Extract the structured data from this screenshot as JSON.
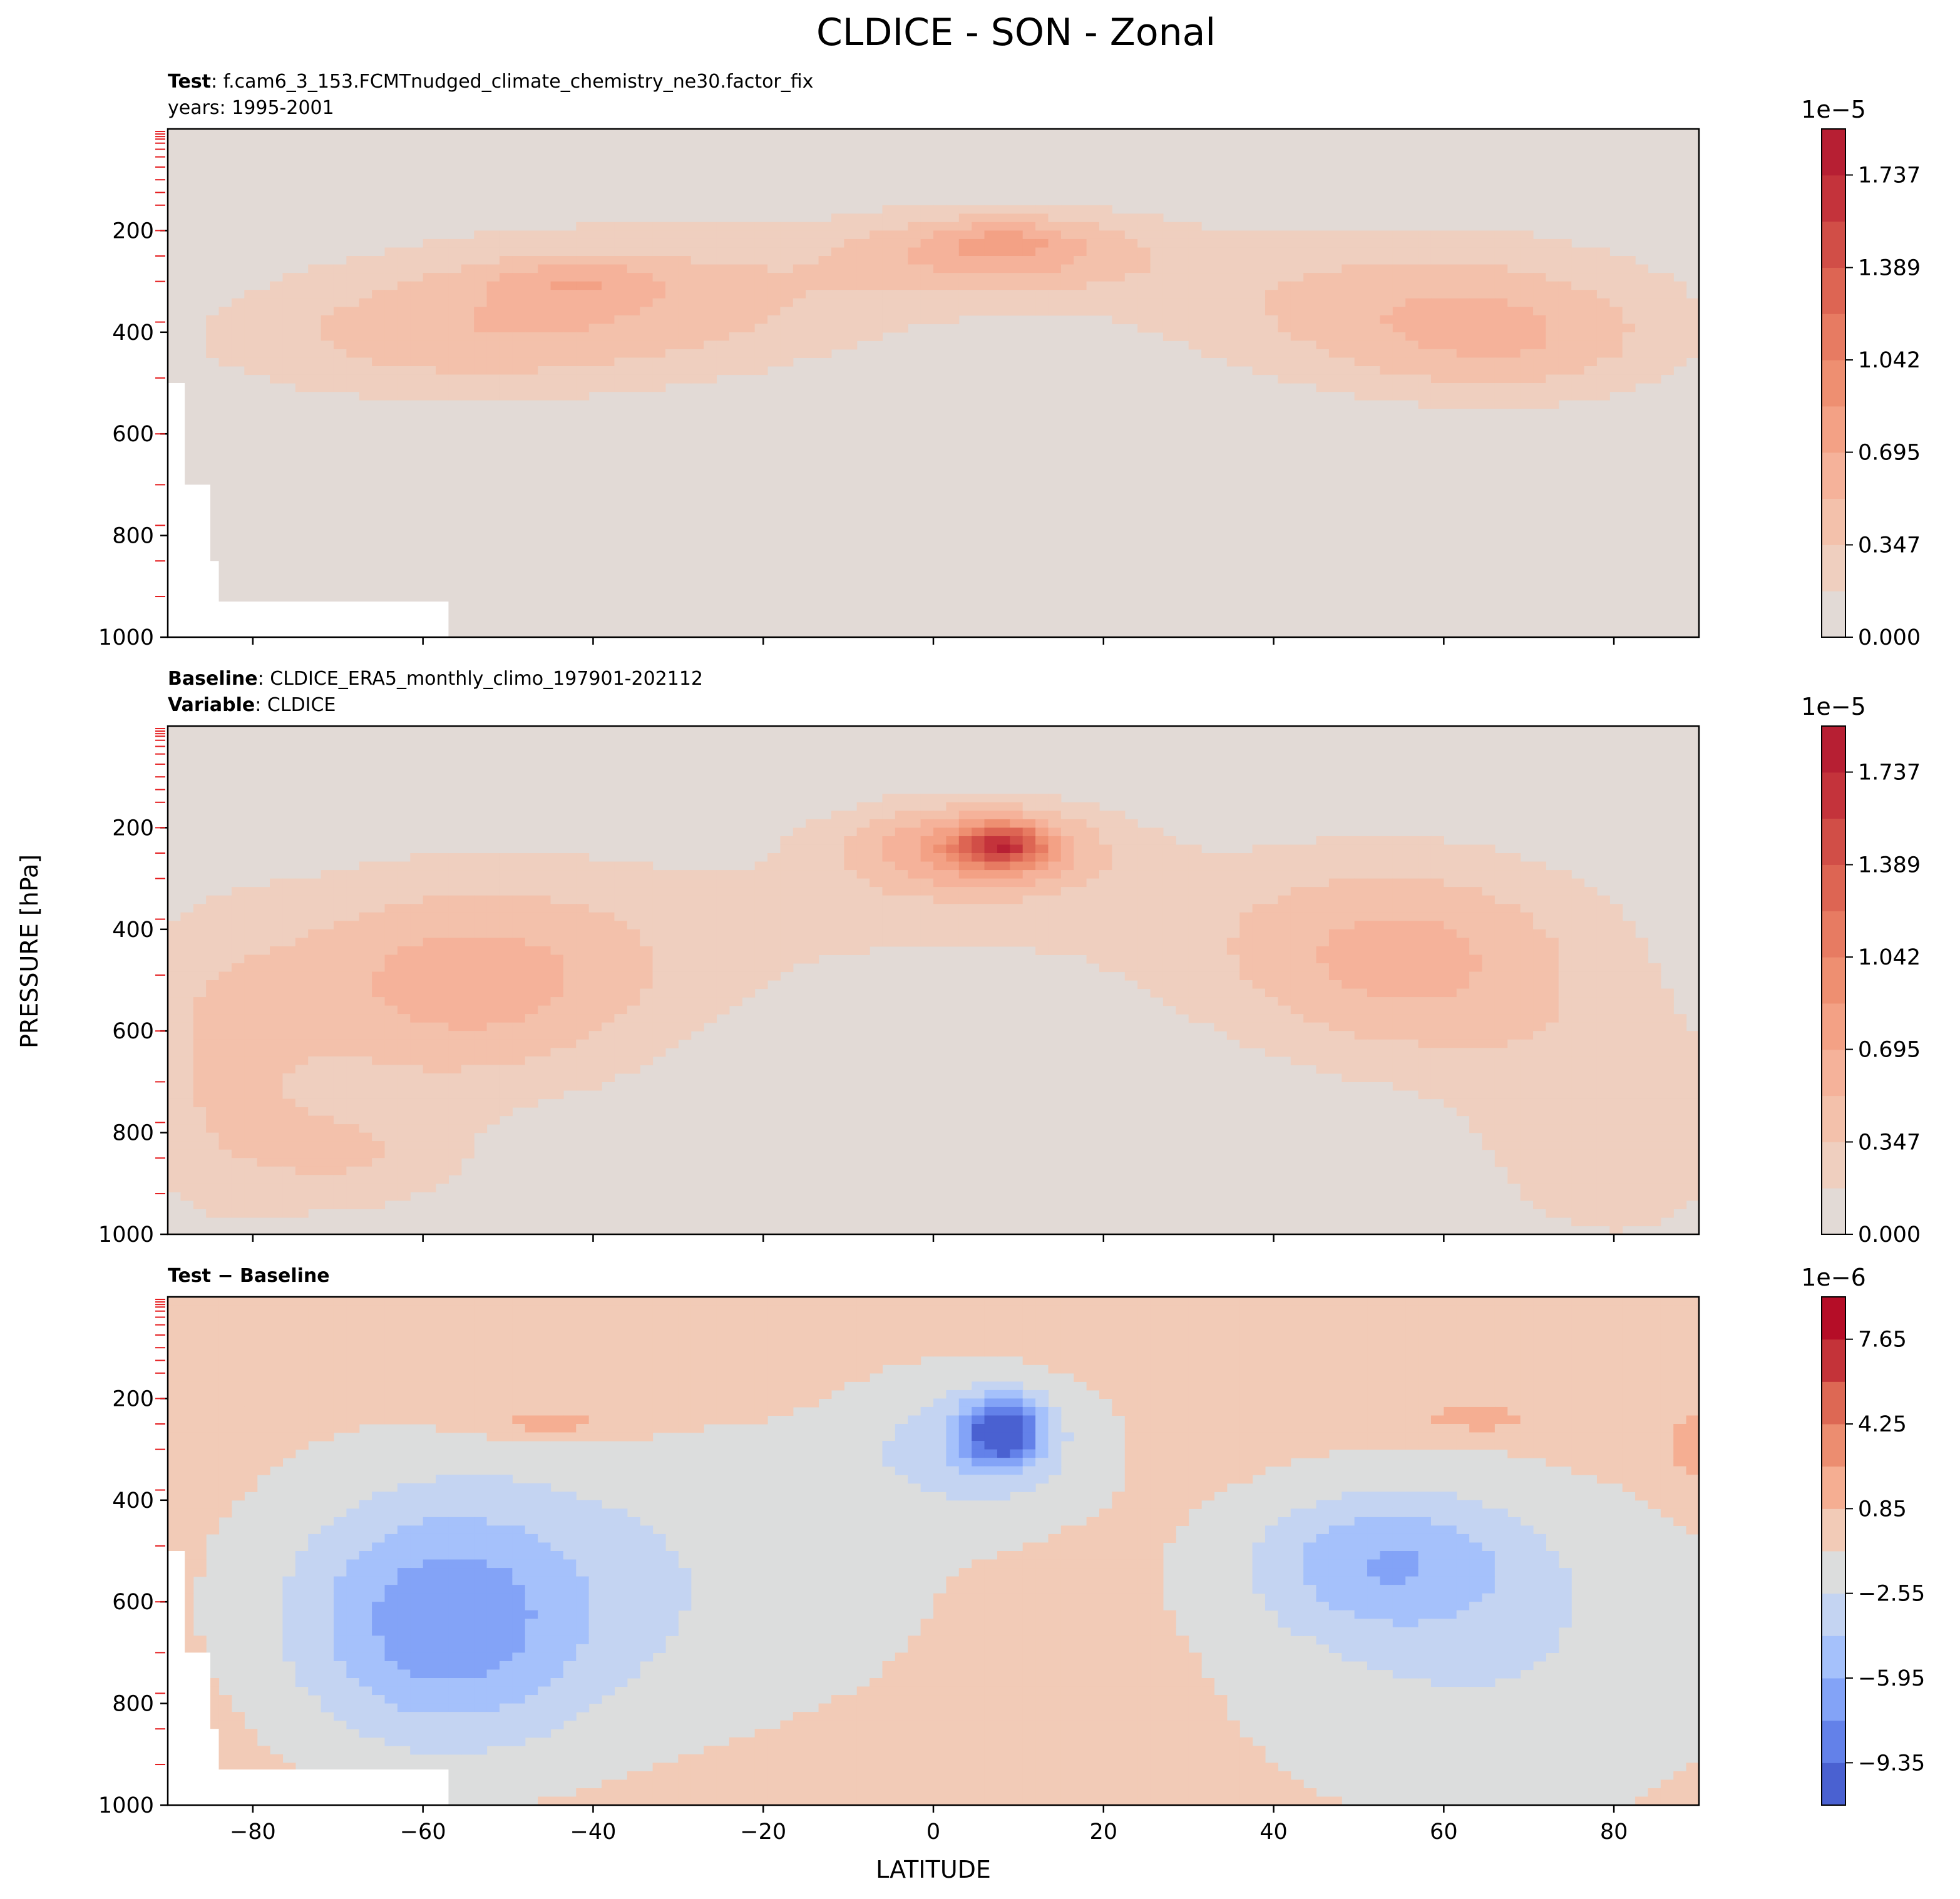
{
  "figure": {
    "title": "CLDICE - SON - Zonal",
    "ylabel": "PRESSURE [hPa]",
    "xlabel": "LATITUDE"
  },
  "chart_data": [
    {
      "type": "contourf",
      "panel": "test",
      "meta_lines": [
        {
          "label": "Test",
          "sep": ": ",
          "text": "f.cam6_3_153.FCMTnudged_climate_chemistry_ne30.factor_fix"
        },
        {
          "label": "",
          "sep": "",
          "text": "years: 1995-2001"
        }
      ],
      "xlim": [
        -90,
        90
      ],
      "ylim": [
        1000,
        0
      ],
      "x_ticks": [
        -80,
        -60,
        -40,
        -20,
        0,
        20,
        40,
        60,
        80
      ],
      "y_ticks": [
        200,
        400,
        600,
        800,
        1000
      ],
      "show_x_tick_labels": false,
      "colormap": "sequential-reds",
      "colorbar": {
        "offset": "1e−5",
        "levels": [
          0.0,
          0.174,
          0.347,
          0.521,
          0.695,
          0.868,
          1.042,
          1.215,
          1.389,
          1.563,
          1.737,
          1.91
        ],
        "tick_values": [
          0.0,
          0.347,
          0.695,
          1.042,
          1.389,
          1.737
        ],
        "tick_labels": [
          "0.000",
          "0.347",
          "0.695",
          "1.042",
          "1.389",
          "1.737"
        ]
      },
      "features": [
        {
          "lat": -42,
          "plev": 300,
          "value": 0.7
        },
        {
          "lat": 8,
          "plev": 230,
          "value": 0.85
        },
        {
          "lat": 50,
          "plev": 320,
          "value": 0.5
        }
      ]
    },
    {
      "type": "contourf",
      "panel": "baseline",
      "meta_lines": [
        {
          "label": "Baseline",
          "sep": ": ",
          "text": "CLDICE_ERA5_monthly_climo_197901-202112"
        },
        {
          "label": "Variable",
          "sep": ": ",
          "text": "CLDICE"
        }
      ],
      "xlim": [
        -90,
        90
      ],
      "ylim": [
        1000,
        0
      ],
      "x_ticks": [
        -80,
        -60,
        -40,
        -20,
        0,
        20,
        40,
        60,
        80
      ],
      "y_ticks": [
        200,
        400,
        600,
        800,
        1000
      ],
      "show_x_tick_labels": false,
      "colormap": "sequential-reds",
      "colorbar": {
        "offset": "1e−5",
        "levels": [
          0.0,
          0.174,
          0.347,
          0.521,
          0.695,
          0.868,
          1.042,
          1.215,
          1.389,
          1.563,
          1.737,
          1.91
        ],
        "tick_values": [
          0.0,
          0.347,
          0.695,
          1.042,
          1.389,
          1.737
        ],
        "tick_labels": [
          "0.000",
          "0.347",
          "0.695",
          "1.042",
          "1.389",
          "1.737"
        ]
      },
      "features": [
        {
          "lat": 8,
          "plev": 230,
          "value": 1.8
        },
        {
          "lat": -60,
          "plev": 550,
          "value": 0.8
        },
        {
          "lat": 55,
          "plev": 480,
          "value": 0.8
        }
      ]
    },
    {
      "type": "contourf",
      "panel": "difference",
      "meta_lines": [
        {
          "label": "Test − Baseline",
          "sep": "",
          "text": ""
        }
      ],
      "xlim": [
        -90,
        90
      ],
      "ylim": [
        1000,
        0
      ],
      "x_ticks": [
        -80,
        -60,
        -40,
        -20,
        0,
        20,
        40,
        60,
        80
      ],
      "y_ticks": [
        200,
        400,
        600,
        800,
        1000
      ],
      "show_x_tick_labels": true,
      "x_tick_labels": [
        "−80",
        "−60",
        "−40",
        "−20",
        "0",
        "20",
        "40",
        "60",
        "80"
      ],
      "colormap": "diverging-coolwarm",
      "colorbar": {
        "offset": "1e−6",
        "levels": [
          -11.05,
          -9.35,
          -7.65,
          -5.95,
          -4.25,
          -2.55,
          -0.85,
          0.85,
          2.55,
          4.25,
          5.95,
          7.65,
          9.35
        ],
        "tick_values": [
          -9.35,
          -5.95,
          -2.55,
          0.85,
          4.25,
          7.65
        ],
        "tick_labels": [
          "−9.35",
          "−5.95",
          "−2.55",
          "0.85",
          "4.25",
          "7.65"
        ]
      },
      "features": [
        {
          "lat": 8,
          "plev": 260,
          "value": -9.0
        },
        {
          "lat": -60,
          "plev": 650,
          "value": -6.5
        },
        {
          "lat": 55,
          "plev": 480,
          "value": -6.0
        },
        {
          "lat": -45,
          "plev": 250,
          "value": 1.5
        },
        {
          "lat": 63,
          "plev": 240,
          "value": 1.5
        }
      ]
    }
  ]
}
